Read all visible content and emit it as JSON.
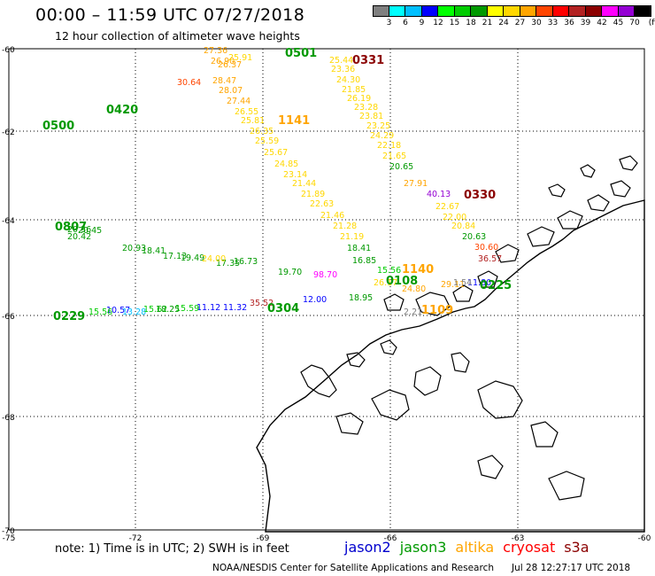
{
  "title": "00:00 – 11:59 UTC 07/27/2018",
  "subtitle": "12 hour collection of altimeter wave heights",
  "colorbar": {
    "unit": "(ft)",
    "colors": [
      "#7f7f7f",
      "#00ffff",
      "#00bfff",
      "#0000ff",
      "#00ff00",
      "#00cc00",
      "#009900",
      "#ffff00",
      "#ffd700",
      "#ffa500",
      "#ff4500",
      "#ff0000",
      "#b22222",
      "#8b0000",
      "#ff00ff",
      "#9400d3",
      "#000000"
    ],
    "labels": [
      "3",
      "6",
      "9",
      "12",
      "15",
      "18",
      "21",
      "24",
      "27",
      "30",
      "33",
      "36",
      "39",
      "42",
      "45",
      "70"
    ]
  },
  "axes": {
    "lat_labels": [
      "-60",
      "-62",
      "-64",
      "-66",
      "-68",
      "-70"
    ],
    "lon_labels": [
      "-75",
      "-72",
      "-69",
      "-66",
      "-63",
      "-60"
    ]
  },
  "observations": [
    {
      "t": "27.36",
      "c": "#ffa500"
    },
    {
      "t": "26.90",
      "c": "#ffa500"
    },
    {
      "t": "26.37",
      "c": "#ffa500"
    },
    {
      "t": "25.91",
      "c": "#ffd700"
    },
    {
      "t": "28.47",
      "c": "#ffa500"
    },
    {
      "t": "28.07",
      "c": "#ffa500"
    },
    {
      "t": "27.44",
      "c": "#ffa500"
    },
    {
      "t": "26.55",
      "c": "#ffd700"
    },
    {
      "t": "25.81",
      "c": "#ffd700"
    },
    {
      "t": "26.35",
      "c": "#ffd700"
    },
    {
      "t": "25.59",
      "c": "#ffd700"
    },
    {
      "t": "25.67",
      "c": "#ffd700"
    },
    {
      "t": "24.85",
      "c": "#ffd700"
    },
    {
      "t": "23.14",
      "c": "#ffd700"
    },
    {
      "t": "21.44",
      "c": "#ffd700"
    },
    {
      "t": "21.89",
      "c": "#ffd700"
    },
    {
      "t": "22.63",
      "c": "#ffd700"
    },
    {
      "t": "21.46",
      "c": "#ffd700"
    },
    {
      "t": "21.28",
      "c": "#ffd700"
    },
    {
      "t": "21.19",
      "c": "#ffd700"
    },
    {
      "t": "30.64",
      "c": "#ff4500"
    },
    {
      "t": "25.44",
      "c": "#ffd700"
    },
    {
      "t": "23.36",
      "c": "#ffd700"
    },
    {
      "t": "24.30",
      "c": "#ffd700"
    },
    {
      "t": "21.85",
      "c": "#ffd700"
    },
    {
      "t": "26.19",
      "c": "#ffd700"
    },
    {
      "t": "23.28",
      "c": "#ffd700"
    },
    {
      "t": "23.81",
      "c": "#ffd700"
    },
    {
      "t": "23.25",
      "c": "#ffd700"
    },
    {
      "t": "24.29",
      "c": "#ffd700"
    },
    {
      "t": "22.18",
      "c": "#ffd700"
    },
    {
      "t": "21.65",
      "c": "#ffd700"
    },
    {
      "t": "20.65",
      "c": "#009900"
    },
    {
      "t": "27.91",
      "c": "#ffa500"
    },
    {
      "t": "40.13",
      "c": "#9400d3"
    },
    {
      "t": "22.67",
      "c": "#ffd700"
    },
    {
      "t": "22.00",
      "c": "#ffd700"
    },
    {
      "t": "20.84",
      "c": "#ffd700"
    },
    {
      "t": "20.63",
      "c": "#009900"
    },
    {
      "t": "30.60",
      "c": "#ff4500"
    },
    {
      "t": "36.57",
      "c": "#b22222"
    },
    {
      "t": "18.41",
      "c": "#009900"
    },
    {
      "t": "16.85",
      "c": "#009900"
    },
    {
      "t": "15.56",
      "c": "#00cc00"
    },
    {
      "t": "20.42",
      "c": "#009900"
    },
    {
      "t": "20.45",
      "c": "#009900"
    },
    {
      "t": "20.36",
      "c": "#009900"
    },
    {
      "t": "20.93",
      "c": "#009900"
    },
    {
      "t": "18.41",
      "c": "#009900"
    },
    {
      "t": "17.13",
      "c": "#009900"
    },
    {
      "t": "19.49",
      "c": "#009900"
    },
    {
      "t": "17.35",
      "c": "#009900"
    },
    {
      "t": "16.73",
      "c": "#009900"
    },
    {
      "t": "19.70",
      "c": "#009900"
    },
    {
      "t": "24.00",
      "c": "#ffd700"
    },
    {
      "t": "98.70",
      "c": "#ff00ff"
    },
    {
      "t": "18.95",
      "c": "#009900"
    },
    {
      "t": "29.11",
      "c": "#ffa500"
    },
    {
      "t": "11.80",
      "c": "#0000ff"
    },
    {
      "t": "12.00",
      "c": "#0000ff"
    },
    {
      "t": "2.21",
      "c": "#7f7f7f"
    },
    {
      "t": "24.80",
      "c": "#ffa500"
    },
    {
      "t": "26.17",
      "c": "#ffd700"
    },
    {
      "t": "1.54",
      "c": "#7f7f7f"
    },
    {
      "t": "11.12",
      "c": "#0000ff"
    },
    {
      "t": "11.32",
      "c": "#0000ff"
    },
    {
      "t": "15.59",
      "c": "#00cc00"
    },
    {
      "t": "10.57",
      "c": "#0000ff"
    },
    {
      "t": "13.28",
      "c": "#00bfff"
    },
    {
      "t": "15.62",
      "c": "#00cc00"
    },
    {
      "t": "18.25",
      "c": "#009900"
    },
    {
      "t": "35.52",
      "c": "#b22222"
    },
    {
      "t": "15.56",
      "c": "#00cc00"
    }
  ],
  "pass_times": [
    {
      "t": "0501",
      "c": "#009900"
    },
    {
      "t": "0331",
      "c": "#8b0000"
    },
    {
      "t": "0420",
      "c": "#009900"
    },
    {
      "t": "1141",
      "c": "#ffa500"
    },
    {
      "t": "0500",
      "c": "#009900"
    },
    {
      "t": "0330",
      "c": "#8b0000"
    },
    {
      "t": "0807",
      "c": "#009900"
    },
    {
      "t": "1140",
      "c": "#ffa500"
    },
    {
      "t": "0108",
      "c": "#009900"
    },
    {
      "t": "0225",
      "c": "#009900"
    },
    {
      "t": "1109",
      "c": "#ffa500"
    },
    {
      "t": "0304",
      "c": "#009900"
    },
    {
      "t": "0229",
      "c": "#009900"
    }
  ],
  "footer": {
    "note": "note: 1) Time is in UTC; 2) SWH is in feet",
    "legend": [
      {
        "name": "jason2",
        "c": "#0000cd"
      },
      {
        "name": "jason3",
        "c": "#009900"
      },
      {
        "name": "altika",
        "c": "#ffa500"
      },
      {
        "name": "cryosat",
        "c": "#ff0000"
      },
      {
        "name": "s3a",
        "c": "#8b0000"
      }
    ],
    "credits": "NOAA/NESDIS Center for Satellite Applications and Research",
    "timestamp": "Jul 28 12:27:17 UTC 2018"
  }
}
